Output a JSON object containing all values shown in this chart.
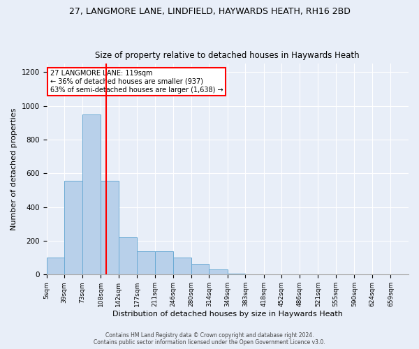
{
  "title1": "27, LANGMORE LANE, LINDFIELD, HAYWARDS HEATH, RH16 2BD",
  "title2": "Size of property relative to detached houses in Haywards Heath",
  "xlabel": "Distribution of detached houses by size in Haywards Heath",
  "ylabel": "Number of detached properties",
  "annotation_title": "27 LANGMORE LANE: 119sqm",
  "annotation_line1": "← 36% of detached houses are smaller (937)",
  "annotation_line2": "63% of semi-detached houses are larger (1,638) →",
  "footer1": "Contains HM Land Registry data © Crown copyright and database right 2024.",
  "footer2": "Contains public sector information licensed under the Open Government Licence v3.0.",
  "bin_edges": [
    5,
    39,
    73,
    108,
    142,
    177,
    211,
    246,
    280,
    314,
    349,
    383,
    418,
    452,
    486,
    521,
    555,
    590,
    624,
    659,
    693
  ],
  "bar_heights": [
    100,
    555,
    950,
    555,
    220,
    140,
    140,
    100,
    65,
    30,
    5,
    0,
    0,
    0,
    0,
    0,
    0,
    0,
    0,
    0
  ],
  "bar_color": "#b8d0ea",
  "bar_edge_color": "#6aaad4",
  "red_line_x": 119,
  "ylim": [
    0,
    1250
  ],
  "yticks": [
    0,
    200,
    400,
    600,
    800,
    1000,
    1200
  ],
  "background_color": "#e8eef8",
  "annotation_box_color": "white",
  "annotation_box_edge": "red",
  "grid_color": "white",
  "title1_fontsize": 9,
  "title2_fontsize": 8.5,
  "xlabel_fontsize": 8,
  "ylabel_fontsize": 8
}
